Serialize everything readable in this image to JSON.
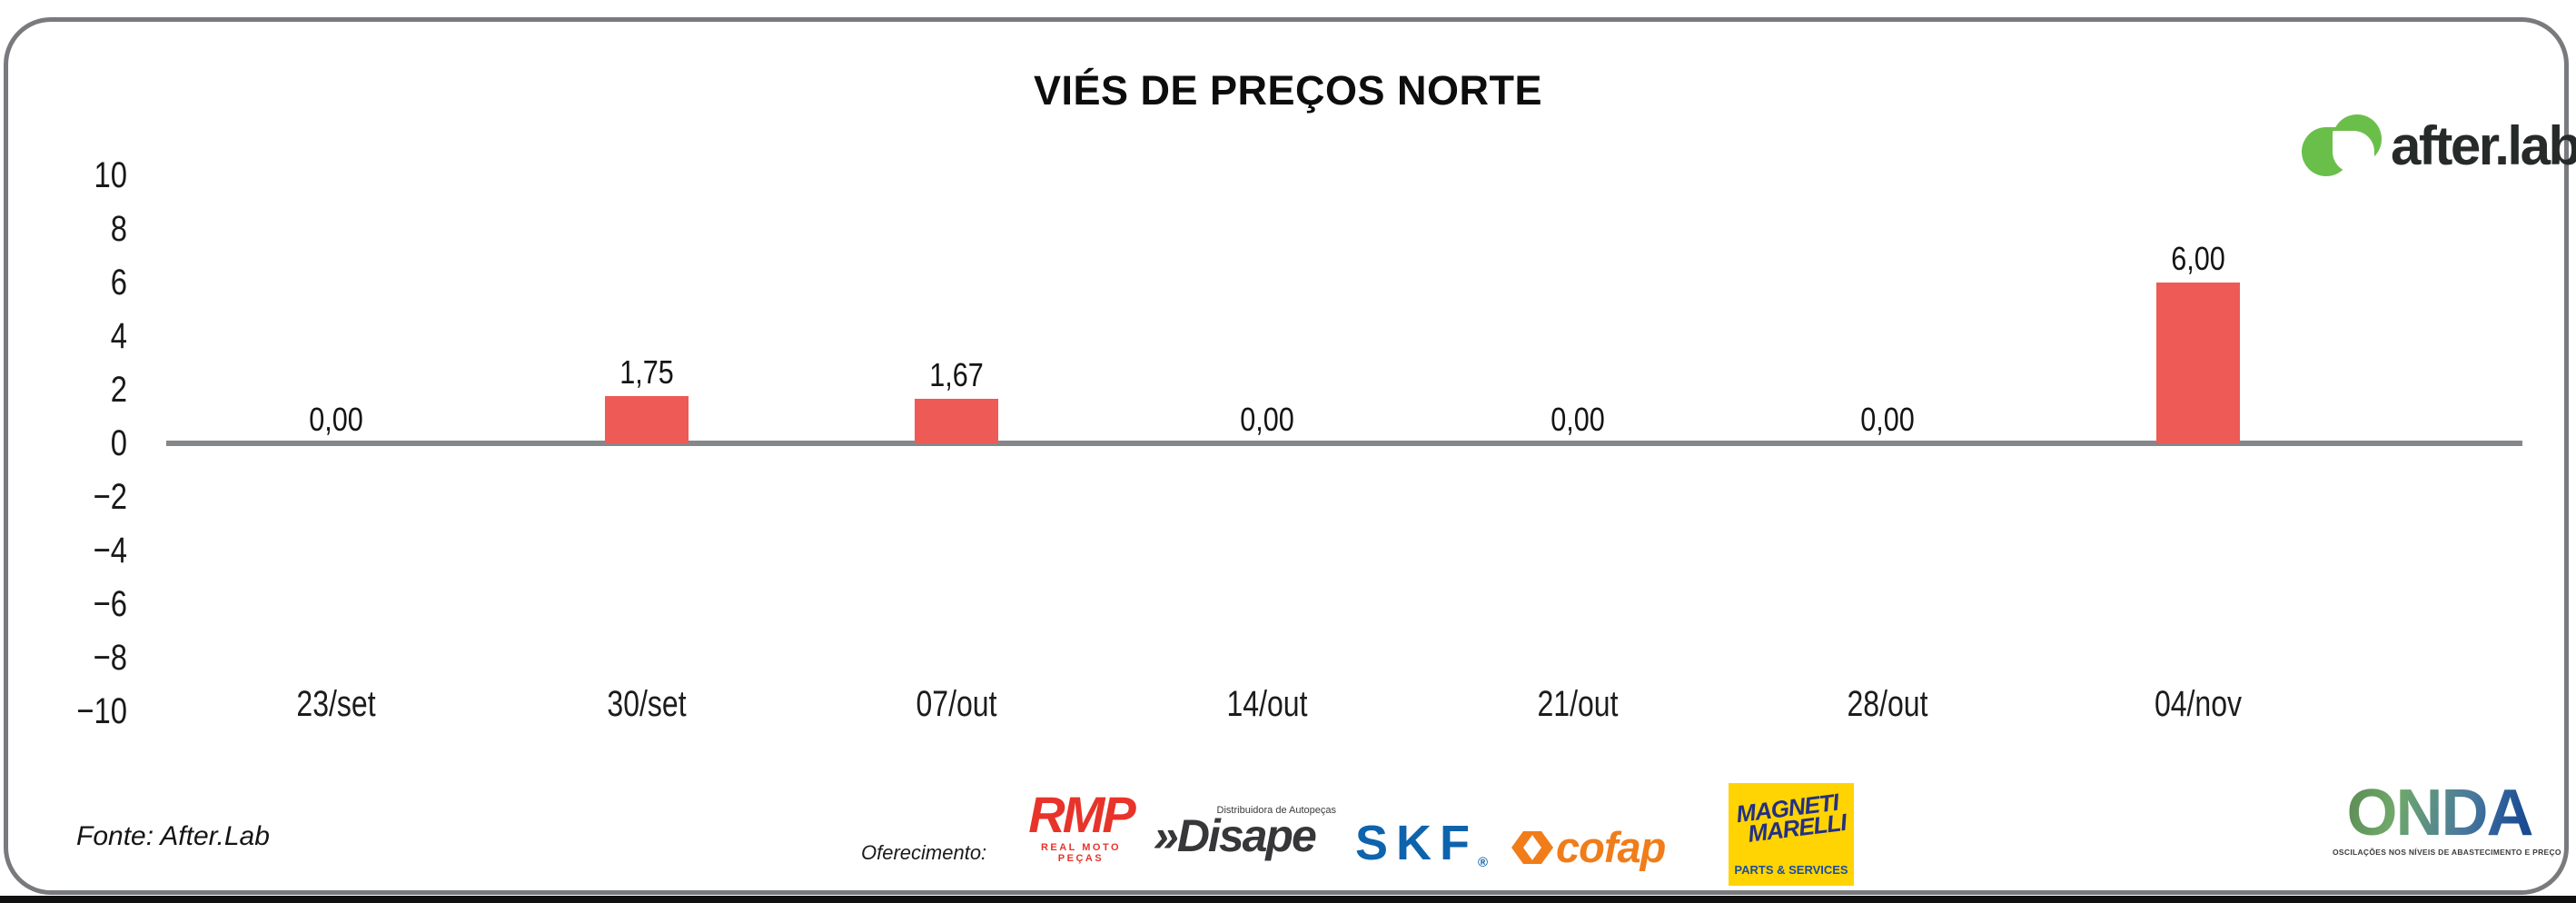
{
  "branding": {
    "logo_text": "after.lab",
    "logo_green": "#6abf4b",
    "logo_text_color": "#262b2a"
  },
  "chart_data": {
    "type": "bar",
    "title": "VIÉS DE PREÇOS NORTE",
    "categories": [
      "23/set",
      "30/set",
      "07/out",
      "14/out",
      "21/out",
      "28/out",
      "04/nov"
    ],
    "values": [
      0,
      1.75,
      1.67,
      0,
      0,
      0,
      6.0
    ],
    "value_labels": [
      "0,00",
      "1,75",
      "1,67",
      "0,00",
      "0,00",
      "0,00",
      "6,00"
    ],
    "xlabel": "",
    "ylabel": "",
    "ylim": [
      -10,
      10
    ],
    "yticks": [
      10,
      8,
      6,
      4,
      2,
      0,
      -2,
      -4,
      -6,
      -8,
      -10
    ],
    "grid": false,
    "legend": false,
    "bar_color": "#ee5a55",
    "baseline_color": "#85878a"
  },
  "footer": {
    "source": "Fonte: After.Lab",
    "sponsorship_label": "Oferecimento:",
    "sponsors": {
      "rmp": {
        "name": "RMP",
        "subtext": "REAL MOTO PEÇAS",
        "color": "#e8332a"
      },
      "disape": {
        "prefix": "»",
        "name": "Disape",
        "subtext": "Distribuidora de Autopeças",
        "color": "#37373a"
      },
      "skf": {
        "name": "SKF",
        "registered": "®",
        "color": "#0e63ad"
      },
      "cofap": {
        "name": "cofap",
        "color": "#f07d1a"
      },
      "magneti": {
        "line1": "MAGNETI",
        "line2": "MARELLI",
        "subtext": "PARTS & SERVICES",
        "bg_color": "#ffd402",
        "text_color": "#243083",
        "subtext_color": "#1c4ea0"
      },
      "onda": {
        "name": "ONDA",
        "tagline": "OSCILAÇÕES NOS NÍVEIS DE ABASTECIMENTO E PREÇO"
      }
    }
  }
}
